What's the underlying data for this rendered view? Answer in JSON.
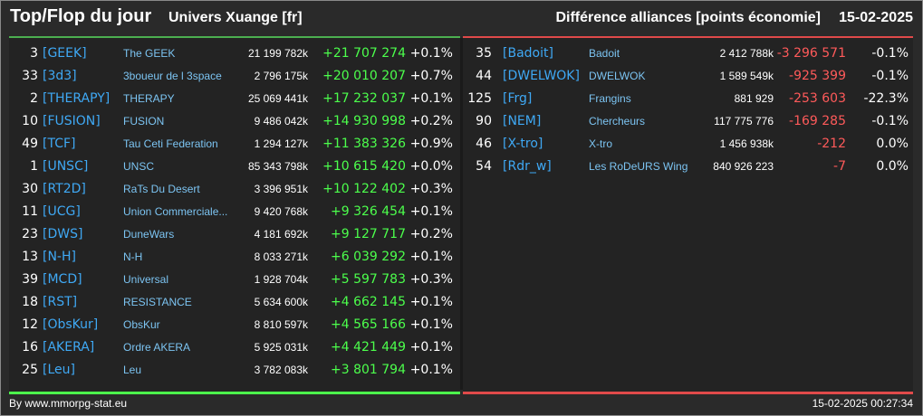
{
  "header": {
    "title": "Top/Flop du jour",
    "universe": "Univers Xuange [fr]",
    "difference_label": "Différence alliances [points économie]",
    "date": "15-02-2025"
  },
  "colors": {
    "positive": "#4cff4c",
    "negative": "#ff5a5a",
    "tag": "#3fa9f5",
    "name": "#7cc4f2"
  },
  "top": [
    {
      "rank": "3",
      "tag": "[GEEK]",
      "name": "The GEEK",
      "points": "21 199 782k",
      "diff": "+21 707 274",
      "pct": "+0.1%"
    },
    {
      "rank": "33",
      "tag": "[3d3]",
      "name": "3boueur de l 3space",
      "points": "2 796 175k",
      "diff": "+20 010 207",
      "pct": "+0.7%"
    },
    {
      "rank": "2",
      "tag": "[THERAPY]",
      "name": "THERAPY",
      "points": "25 069 441k",
      "diff": "+17 232 037",
      "pct": "+0.1%"
    },
    {
      "rank": "10",
      "tag": "[FUSION]",
      "name": "FUSION",
      "points": "9 486 042k",
      "diff": "+14 930 998",
      "pct": "+0.2%"
    },
    {
      "rank": "49",
      "tag": "[TCF]",
      "name": "Tau Ceti Federation",
      "points": "1 294 127k",
      "diff": "+11 383 326",
      "pct": "+0.9%"
    },
    {
      "rank": "1",
      "tag": "[UNSC]",
      "name": "UNSC",
      "points": "85 343 798k",
      "diff": "+10 615 420",
      "pct": "+0.0%"
    },
    {
      "rank": "30",
      "tag": "[RT2D]",
      "name": "RaTs Du Desert",
      "points": "3 396 951k",
      "diff": "+10 122 402",
      "pct": "+0.3%"
    },
    {
      "rank": "11",
      "tag": "[UCG]",
      "name": "Union Commerciale...",
      "points": "9 420 768k",
      "diff": "+9 326 454",
      "pct": "+0.1%"
    },
    {
      "rank": "23",
      "tag": "[DWS]",
      "name": "DuneWars",
      "points": "4 181 692k",
      "diff": "+9 127 717",
      "pct": "+0.2%"
    },
    {
      "rank": "13",
      "tag": "[N-H]",
      "name": "N-H",
      "points": "8 033 271k",
      "diff": "+6 039 292",
      "pct": "+0.1%"
    },
    {
      "rank": "39",
      "tag": "[MCD]",
      "name": "Universal",
      "points": "1 928 704k",
      "diff": "+5 597 783",
      "pct": "+0.3%"
    },
    {
      "rank": "18",
      "tag": "[RST]",
      "name": "RESISTANCE",
      "points": "5 634 600k",
      "diff": "+4 662 145",
      "pct": "+0.1%"
    },
    {
      "rank": "12",
      "tag": "[ObsKur]",
      "name": "ObsKur",
      "points": "8 810 597k",
      "diff": "+4 565 166",
      "pct": "+0.1%"
    },
    {
      "rank": "16",
      "tag": "[AKERA]",
      "name": "Ordre AKERA",
      "points": "5 925 031k",
      "diff": "+4 421 449",
      "pct": "+0.1%"
    },
    {
      "rank": "25",
      "tag": "[Leu]",
      "name": "Leu",
      "points": "3 782 083k",
      "diff": "+3 801 794",
      "pct": "+0.1%"
    }
  ],
  "flop": [
    {
      "rank": "35",
      "tag": "[Badoit]",
      "name": "Badoit",
      "points": "2 412 788k",
      "diff": "-3 296 571",
      "pct": "-0.1%"
    },
    {
      "rank": "44",
      "tag": "[DWELWOK]",
      "name": "DWELWOK",
      "points": "1 589 549k",
      "diff": "-925 399",
      "pct": "-0.1%"
    },
    {
      "rank": "125",
      "tag": "[Frg]",
      "name": "Frangins",
      "points": "881 929",
      "diff": "-253 603",
      "pct": "-22.3%"
    },
    {
      "rank": "90",
      "tag": "[NEM]",
      "name": "Chercheurs",
      "points": "117 775 776",
      "diff": "-169 285",
      "pct": "-0.1%"
    },
    {
      "rank": "46",
      "tag": "[X-tro]",
      "name": "X-tro",
      "points": "1 456 938k",
      "diff": "-212",
      "pct": "0.0%"
    },
    {
      "rank": "54",
      "tag": "[Rdr_w]",
      "name": "Les RoDeURS Wing",
      "points": "840 926 223",
      "diff": "-7",
      "pct": "0.0%"
    }
  ],
  "footer": {
    "credit": "By www.mmorpg-stat.eu",
    "timestamp": "15-02-2025 00:27:34"
  }
}
